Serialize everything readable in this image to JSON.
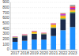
{
  "chart_data": {
    "type": "bar",
    "stacked": true,
    "grid": true,
    "categories": [
      "2017",
      "2018",
      "2019",
      "2020",
      "2021",
      "2022",
      "2023"
    ],
    "series": [
      {
        "color": "#1E90FF",
        "values": [
          150,
          170,
          190,
          190,
          260,
          370,
          430
        ]
      },
      {
        "color": "#1B2A4A",
        "values": [
          80,
          95,
          110,
          105,
          155,
          210,
          270
        ]
      },
      {
        "color": "#70AD47",
        "values": [
          5,
          6,
          8,
          8,
          12,
          18,
          22
        ]
      },
      {
        "color": "#FFC000",
        "values": [
          3,
          4,
          30,
          5,
          45,
          35,
          20
        ]
      },
      {
        "color": "#ED7D31",
        "values": [
          3,
          3,
          5,
          3,
          8,
          20,
          25
        ]
      },
      {
        "color": "#7030A0",
        "values": [
          4,
          5,
          6,
          4,
          8,
          12,
          15
        ]
      },
      {
        "color": "#CC00CC",
        "values": [
          3,
          4,
          4,
          3,
          6,
          10,
          18
        ]
      },
      {
        "color": "#FF0000",
        "values": [
          2,
          3,
          3,
          3,
          5,
          10,
          20
        ]
      },
      {
        "color": "#A9A9A9",
        "values": [
          0,
          0,
          0,
          0,
          0,
          12,
          35
        ]
      }
    ],
    "ylim": [
      0,
      900
    ],
    "yticks": [
      0,
      100,
      200,
      300,
      400,
      500,
      600,
      700,
      800,
      900
    ]
  }
}
